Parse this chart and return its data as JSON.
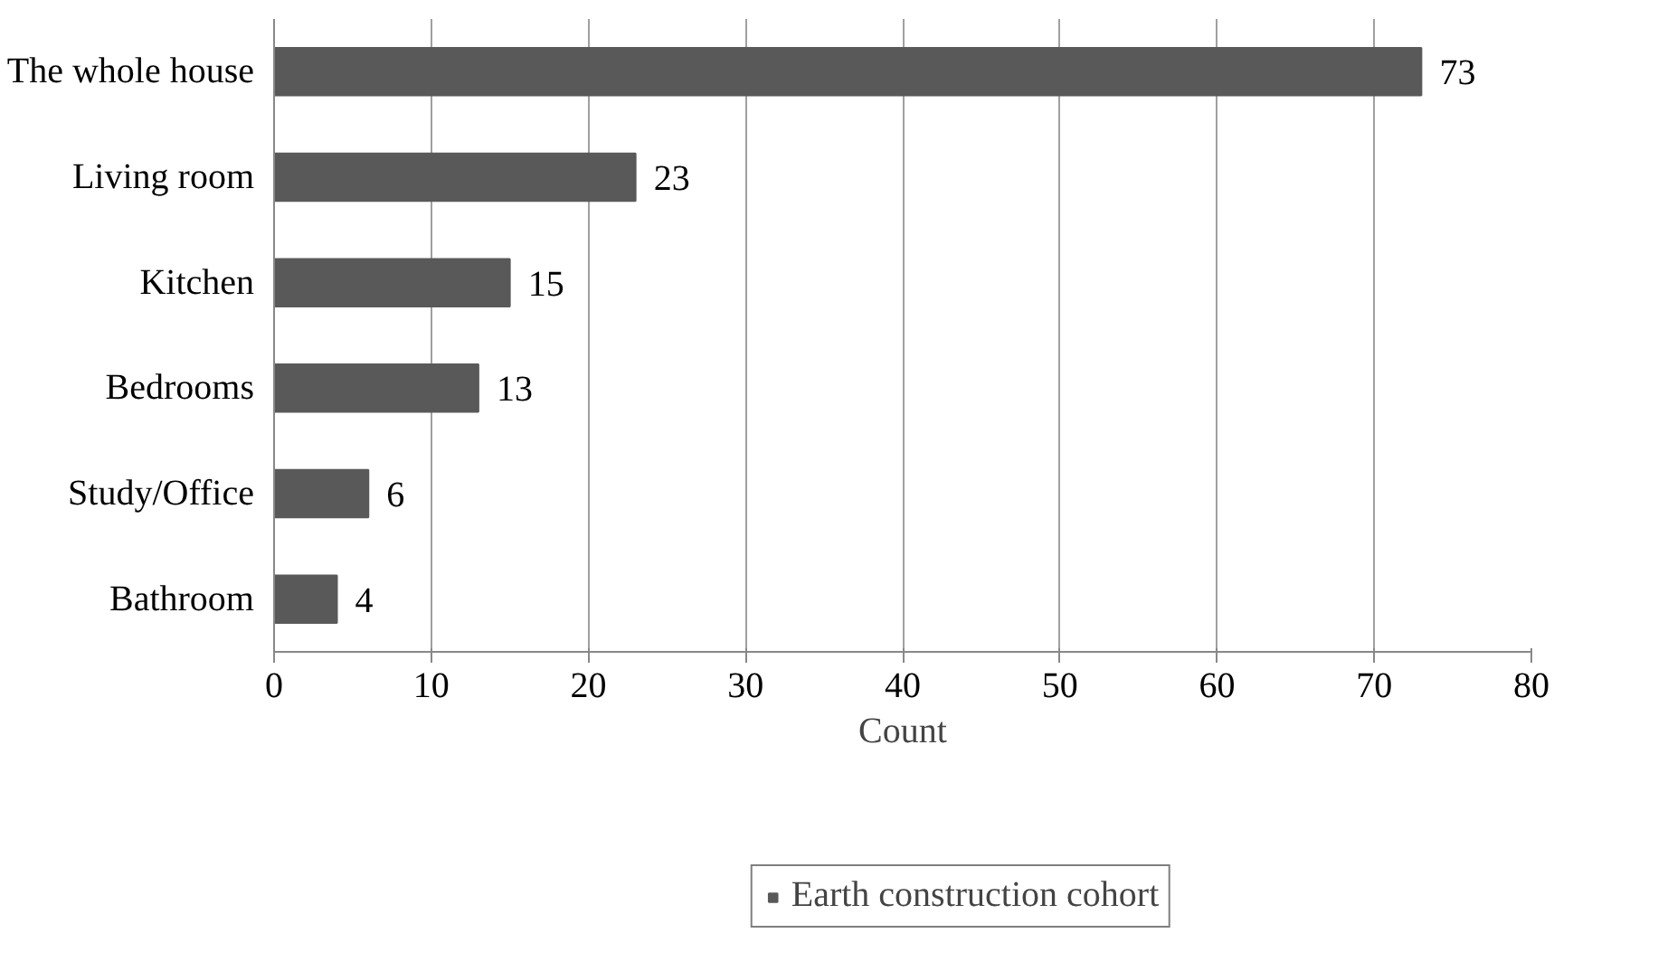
{
  "chart_data": {
    "type": "bar",
    "orientation": "horizontal",
    "xlabel": "Count",
    "categories": [
      "The whole house",
      "Living room",
      "Kitchen",
      "Bedrooms",
      "Study/Office",
      "Bathroom"
    ],
    "series": [
      {
        "name": "Earth construction cohort",
        "color": "#595959",
        "values": [
          73,
          23,
          15,
          13,
          6,
          4
        ]
      }
    ],
    "xlim": [
      0,
      80
    ],
    "xticks": [
      0,
      10,
      20,
      30,
      40,
      50,
      60,
      70,
      80
    ],
    "grid": "x",
    "legend": "bottom",
    "data_labels": true
  }
}
